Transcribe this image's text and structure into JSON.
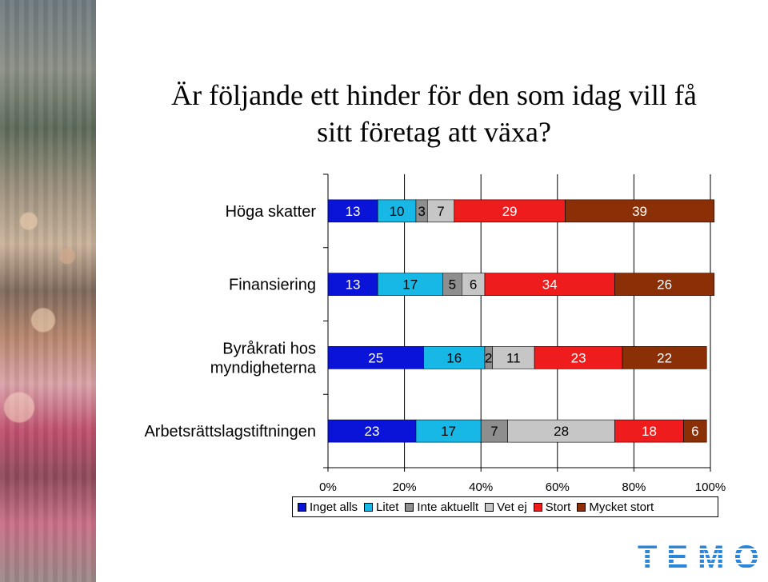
{
  "title": {
    "line1": "Är följande ett hinder för den som idag vill få",
    "line2": "sitt företag att växa?"
  },
  "logo": {
    "text": "TEMO"
  },
  "chart_data": {
    "type": "bar",
    "orientation": "horizontal",
    "stacked": "percent",
    "categories": [
      "Höga skatter",
      "Finansiering",
      "Byråkrati hos myndigheterna",
      "Arbetsrättslagstiftningen"
    ],
    "category_lines": [
      [
        "Höga skatter"
      ],
      [
        "Finansiering"
      ],
      [
        "Byråkrati hos",
        "myndigheterna"
      ],
      [
        "Arbetsrättslagstiftningen"
      ]
    ],
    "series": [
      {
        "name": "Inget alls",
        "color": "#0a14d8",
        "label_color": "#ffffff",
        "values": [
          13,
          13,
          25,
          23
        ]
      },
      {
        "name": "Litet",
        "color": "#17b8e6",
        "label_color": "#000000",
        "values": [
          10,
          17,
          16,
          17
        ]
      },
      {
        "name": "Inte aktuellt",
        "color": "#8e8e8e",
        "label_color": "#000000",
        "values": [
          3,
          5,
          2,
          7
        ]
      },
      {
        "name": "Vet ej",
        "color": "#c6c6c6",
        "label_color": "#000000",
        "values": [
          7,
          6,
          11,
          28
        ]
      },
      {
        "name": "Stort",
        "color": "#ee1c1c",
        "label_color": "#ffffff",
        "values": [
          29,
          34,
          23,
          18
        ]
      },
      {
        "name": "Mycket stort",
        "color": "#8b3006",
        "label_color": "#ffffff",
        "values": [
          39,
          26,
          22,
          6
        ]
      }
    ],
    "xlim": [
      0,
      100
    ],
    "x_ticks": [
      "0%",
      "20%",
      "40%",
      "60%",
      "80%",
      "100%"
    ],
    "grid": true,
    "legend_position": "bottom"
  }
}
